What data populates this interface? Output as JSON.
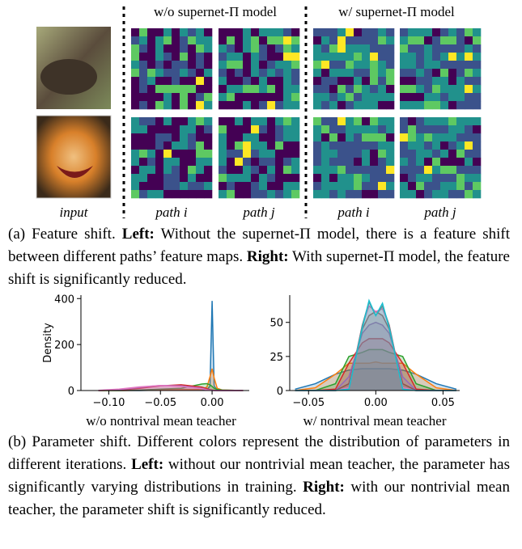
{
  "figure": {
    "headers": [
      "w/o supernet-Π model",
      "w/ supernet-Π model"
    ],
    "labels": [
      "input",
      "path i",
      "path j",
      "path i",
      "path j"
    ],
    "caption_a": [
      {
        "text": "(a) Feature shift. ",
        "bold": false
      },
      {
        "text": "Left:",
        "bold": true
      },
      {
        "text": " Without the supernet-Π model, there is a feature shift between different paths’ feature maps. ",
        "bold": false
      },
      {
        "text": "Right:",
        "bold": true
      },
      {
        "text": " With supernet-Π model, the feature shift is significantly reduced.",
        "bold": false
      }
    ],
    "caption_b": [
      {
        "text": "(b) Parameter shift. Different colors represent the distribution of parameters in different iterations. ",
        "bold": false
      },
      {
        "text": "Left:",
        "bold": true
      },
      {
        "text": " without our nontrivial mean teacher, the parameter has significantly varying distributions in training. ",
        "bold": false
      },
      {
        "text": "Right:",
        "bold": true
      },
      {
        "text": " with our nontrivial mean teacher, the parameter shift is significantly reduced.",
        "bold": false
      }
    ]
  },
  "chart_data": [
    {
      "type": "density",
      "ylabel": "Density",
      "xlabel": "w/o nontrival mean teacher",
      "x": [
        -0.11,
        -0.09,
        -0.07,
        -0.05,
        -0.03,
        -0.01,
        -0.005,
        -0.002,
        0,
        0.002,
        0.005,
        0.01,
        0.03
      ],
      "xlim": [
        -0.127,
        0.036
      ],
      "ylim": [
        0,
        415
      ],
      "xticks": [
        {
          "value": -0.1,
          "label": "−0.10"
        },
        {
          "value": -0.05,
          "label": "−0.05"
        },
        {
          "value": 0,
          "label": "0.00"
        }
      ],
      "yticks": [
        0,
        200,
        400
      ],
      "series": [
        {
          "color": "#1f77b4",
          "values": [
            0,
            0,
            0,
            2,
            3,
            2,
            3,
            20,
            390,
            20,
            2,
            0,
            0
          ]
        },
        {
          "color": "#ff7f0e",
          "values": [
            0,
            0,
            1,
            3,
            4,
            5,
            15,
            60,
            95,
            55,
            10,
            2,
            0
          ]
        },
        {
          "color": "#2ca02c",
          "values": [
            0,
            0,
            2,
            6,
            10,
            28,
            30,
            25,
            18,
            10,
            5,
            2,
            0
          ]
        },
        {
          "color": "#d62728",
          "values": [
            0,
            2,
            10,
            20,
            25,
            15,
            8,
            4,
            2,
            1,
            0,
            0,
            0
          ]
        },
        {
          "color": "#9467bd",
          "values": [
            0,
            4,
            14,
            22,
            20,
            10,
            4,
            2,
            1,
            0,
            0,
            0,
            0
          ]
        },
        {
          "color": "#e377c2",
          "values": [
            1,
            6,
            16,
            22,
            18,
            8,
            3,
            1,
            0,
            0,
            0,
            0,
            0
          ]
        }
      ]
    },
    {
      "type": "density",
      "xlabel": "w/ nontrival mean teacher",
      "x": [
        -0.06,
        -0.045,
        -0.03,
        -0.02,
        -0.01,
        -0.005,
        0,
        0.005,
        0.01,
        0.02,
        0.03,
        0.045,
        0.06
      ],
      "xlim": [
        -0.064,
        0.0624
      ],
      "ylim": [
        0,
        70
      ],
      "xticks": [
        {
          "value": -0.05,
          "label": "−0.05"
        },
        {
          "value": 0,
          "label": "0.00"
        },
        {
          "value": 0.05,
          "label": "0.05"
        }
      ],
      "yticks": [
        0,
        25,
        50
      ],
      "series": [
        {
          "color": "#1f77b4",
          "values": [
            1,
            5,
            12,
            15,
            16,
            16,
            16,
            16,
            16,
            15,
            12,
            5,
            1
          ]
        },
        {
          "color": "#ff7f0e",
          "values": [
            0,
            2,
            12,
            20,
            20,
            20,
            21,
            20,
            20,
            20,
            12,
            2,
            0
          ]
        },
        {
          "color": "#2ca02c",
          "values": [
            0,
            0,
            5,
            25,
            28,
            30,
            30,
            30,
            28,
            25,
            5,
            0,
            0
          ]
        },
        {
          "color": "#d62728",
          "values": [
            0,
            0,
            1,
            20,
            35,
            38,
            38,
            38,
            35,
            20,
            1,
            0,
            0
          ]
        },
        {
          "color": "#9467bd",
          "values": [
            0,
            0,
            0,
            10,
            42,
            48,
            50,
            48,
            42,
            10,
            0,
            0,
            0
          ]
        },
        {
          "color": "#8c564b",
          "values": [
            0,
            0,
            0,
            5,
            45,
            55,
            58,
            55,
            45,
            5,
            0,
            0,
            0
          ]
        },
        {
          "color": "#e377c2",
          "values": [
            0,
            0,
            0,
            2,
            48,
            62,
            58,
            60,
            48,
            2,
            0,
            0,
            0
          ]
        },
        {
          "color": "#7f7f7f",
          "values": [
            0,
            0,
            0,
            1,
            48,
            65,
            55,
            62,
            48,
            1,
            0,
            0,
            0
          ]
        },
        {
          "color": "#17becf",
          "values": [
            0,
            0,
            0,
            1,
            46,
            66,
            55,
            64,
            46,
            1,
            0,
            0,
            0
          ]
        }
      ]
    }
  ]
}
